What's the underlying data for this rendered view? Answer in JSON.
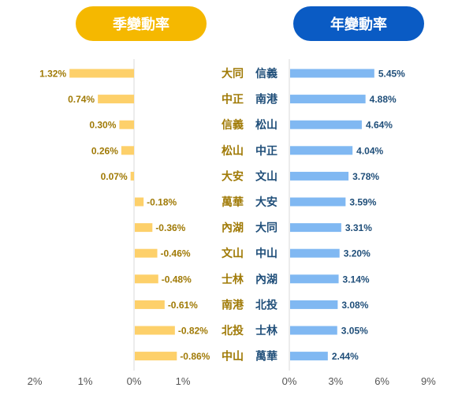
{
  "chart_data": [
    {
      "type": "bar",
      "title": "季變動率",
      "orientation": "horizontal",
      "categories": [
        "大同",
        "中正",
        "信義",
        "松山",
        "大安",
        "萬華",
        "內湖",
        "文山",
        "士林",
        "南港",
        "北投",
        "中山"
      ],
      "values": [
        1.32,
        0.74,
        0.3,
        0.26,
        0.07,
        -0.18,
        -0.36,
        -0.46,
        -0.48,
        -0.61,
        -0.82,
        -0.86
      ],
      "labels": [
        "1.32%",
        "0.74%",
        "0.30%",
        "0.26%",
        "0.07%",
        "-0.18%",
        "-0.36%",
        "-0.46%",
        "-0.48%",
        "-0.61%",
        "-0.82%",
        "-0.86%"
      ],
      "axis_ticks": [
        "2%",
        "1%",
        "0%",
        "1%"
      ],
      "color": "#fdd06a",
      "label_color": "#a07a06"
    },
    {
      "type": "bar",
      "title": "年變動率",
      "orientation": "horizontal",
      "categories": [
        "信義",
        "南港",
        "松山",
        "中正",
        "文山",
        "大安",
        "大同",
        "中山",
        "內湖",
        "北投",
        "士林",
        "萬華"
      ],
      "values": [
        5.45,
        4.88,
        4.64,
        4.04,
        3.78,
        3.59,
        3.31,
        3.2,
        3.14,
        3.08,
        3.05,
        2.44
      ],
      "labels": [
        "5.45%",
        "4.88%",
        "4.64%",
        "4.04%",
        "3.78%",
        "3.59%",
        "3.31%",
        "3.20%",
        "3.14%",
        "3.08%",
        "3.05%",
        "2.44%"
      ],
      "axis_ticks": [
        "0%",
        "3%",
        "6%",
        "9%"
      ],
      "xlim": [
        0,
        9
      ],
      "color": "#80b8f2",
      "label_color": "#1f4e79"
    }
  ]
}
